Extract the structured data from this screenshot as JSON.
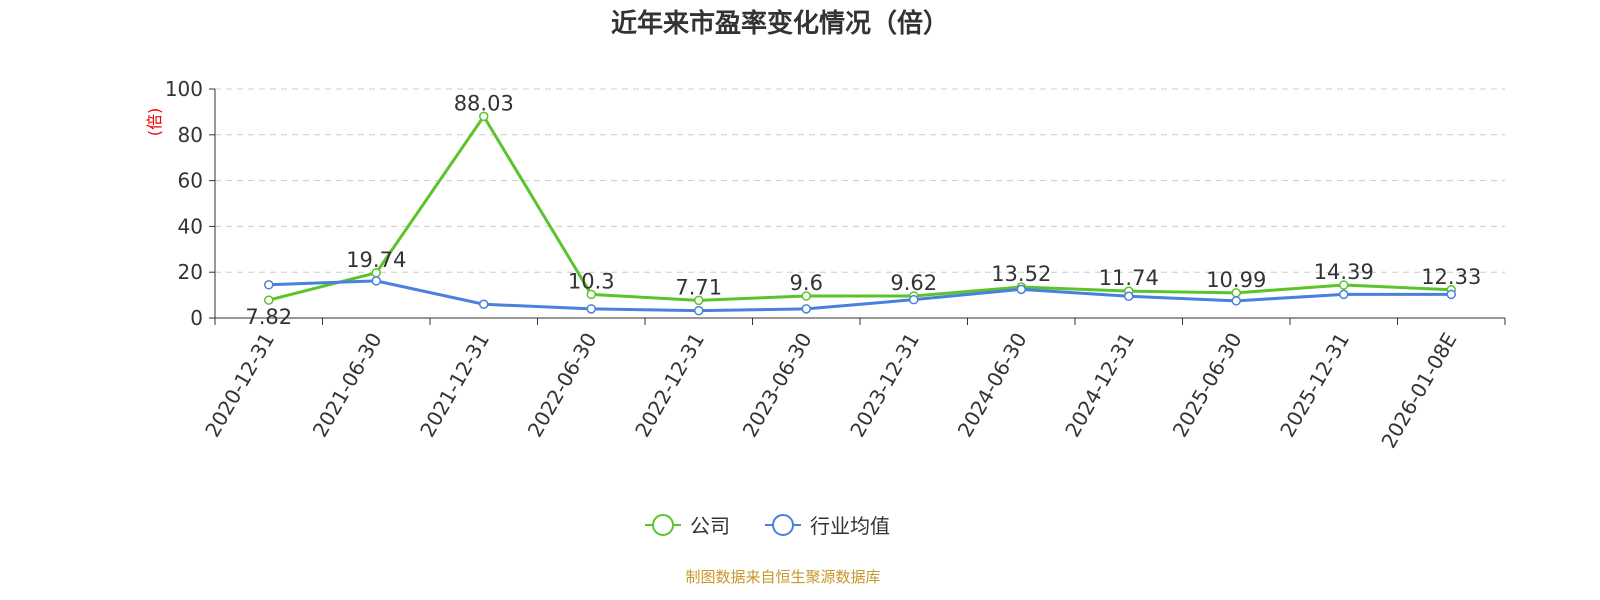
{
  "chart_data": {
    "type": "line",
    "title": "近年来市盈率变化情况（倍）",
    "y_label": "(倍)",
    "categories": [
      "2020-12-31",
      "2021-06-30",
      "2021-12-31",
      "2022-06-30",
      "2022-12-31",
      "2023-06-30",
      "2023-12-31",
      "2024-06-30",
      "2024-12-31",
      "2025-06-30",
      "2025-12-31",
      "2026-01-08E"
    ],
    "series": [
      {
        "name": "公司",
        "color": "#5cc42b",
        "values": [
          7.82,
          19.74,
          88.03,
          10.3,
          7.71,
          9.6,
          9.62,
          13.52,
          11.74,
          10.99,
          14.39,
          12.33
        ]
      },
      {
        "name": "行业均值",
        "color": "#4a80dd",
        "values": [
          14.5,
          16.2,
          6,
          4,
          3.2,
          4,
          8,
          12.5,
          9.5,
          7.5,
          10.3,
          10.3
        ]
      }
    ],
    "ylim": [
      0,
      100
    ],
    "yticks": [
      0,
      20,
      40,
      60,
      80,
      100
    ],
    "grid": true,
    "source": "制图数据来自恒生聚源数据库"
  }
}
